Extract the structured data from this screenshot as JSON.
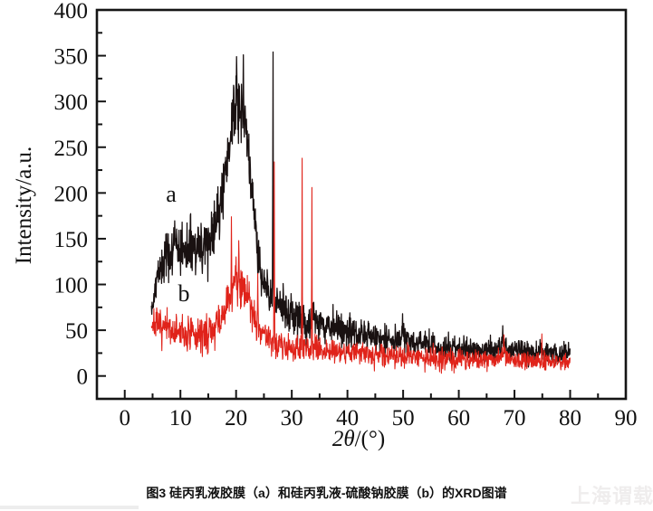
{
  "caption": "图3  硅丙乳液胶膜（a）和硅丙乳液-硫酸钠胶膜（b）的XRD图谱",
  "watermark": "上海谓载",
  "chart_data": {
    "type": "line",
    "title": "",
    "xlabel": "2θ/(°)",
    "xlabel_parts": {
      "italic": "2θ",
      "rest": "/(°)"
    },
    "ylabel": "Intensity/a.u.",
    "xlim": [
      -5,
      90
    ],
    "ylim": [
      -25,
      400
    ],
    "x_ticks": [
      0,
      10,
      20,
      30,
      40,
      50,
      60,
      70,
      80,
      90
    ],
    "x_minor_ticks": [
      5,
      15,
      25,
      35,
      45,
      55,
      65,
      75,
      85
    ],
    "y_ticks": [
      0,
      50,
      100,
      150,
      200,
      250,
      300,
      350,
      400
    ],
    "y_minor_ticks": [
      25,
      75,
      125,
      175,
      225,
      275,
      325,
      375
    ],
    "grid": false,
    "legend_position": "none (series labeled inline with letters)",
    "frame_color": "#151515",
    "tick_direction": "in",
    "series": [
      {
        "name": "a - 硅丙乳液胶膜 (silicone-acrylic emulsion film)",
        "label": "a",
        "color": "#191111",
        "width": 1.3,
        "seed": 42,
        "x_start": 4.8,
        "x_end": 80,
        "step": 0.055,
        "envelope": [
          [
            4.8,
            70
          ],
          [
            5.4,
            96
          ],
          [
            6.2,
            116
          ],
          [
            7,
            127
          ],
          [
            8,
            134
          ],
          [
            9,
            139
          ],
          [
            10,
            140
          ],
          [
            11,
            138
          ],
          [
            12,
            137
          ],
          [
            13,
            139
          ],
          [
            14,
            142
          ],
          [
            15,
            147
          ],
          [
            16,
            158
          ],
          [
            17,
            180
          ],
          [
            17.8,
            205
          ],
          [
            18.6,
            243
          ],
          [
            19.4,
            275
          ],
          [
            20,
            292
          ],
          [
            20.6,
            299
          ],
          [
            21.2,
            290
          ],
          [
            21.8,
            266
          ],
          [
            22.4,
            240
          ],
          [
            23,
            195
          ],
          [
            23.8,
            140
          ],
          [
            24.6,
            110
          ],
          [
            25.4,
            96
          ],
          [
            26.2,
            88
          ],
          [
            27,
            82
          ],
          [
            28,
            76
          ],
          [
            29,
            72
          ],
          [
            30,
            69
          ],
          [
            31,
            64
          ],
          [
            32,
            60
          ],
          [
            33,
            56
          ],
          [
            34,
            61
          ],
          [
            35,
            58
          ],
          [
            36,
            56
          ],
          [
            37,
            55
          ],
          [
            38,
            52
          ],
          [
            39,
            51
          ],
          [
            40,
            49
          ],
          [
            41,
            47
          ],
          [
            42,
            45
          ],
          [
            43,
            44
          ],
          [
            44,
            43
          ],
          [
            45,
            42
          ],
          [
            46,
            41
          ],
          [
            47,
            40
          ],
          [
            48,
            39
          ],
          [
            49,
            39
          ],
          [
            50,
            42
          ],
          [
            51,
            38
          ],
          [
            52,
            36
          ],
          [
            53,
            35
          ],
          [
            54,
            34
          ],
          [
            55,
            34
          ],
          [
            56,
            32
          ],
          [
            57,
            31
          ],
          [
            58,
            31
          ],
          [
            59,
            30
          ],
          [
            60,
            29
          ],
          [
            61,
            29
          ],
          [
            62,
            28
          ],
          [
            63,
            28
          ],
          [
            64,
            27
          ],
          [
            65,
            27
          ],
          [
            66,
            27
          ],
          [
            67,
            29
          ],
          [
            67.8,
            35
          ],
          [
            68.6,
            31
          ],
          [
            69,
            28
          ],
          [
            70,
            27
          ],
          [
            71,
            26
          ],
          [
            72,
            26
          ],
          [
            73,
            26
          ],
          [
            74,
            25
          ],
          [
            75,
            25
          ],
          [
            76,
            25
          ],
          [
            77,
            24
          ],
          [
            78,
            24
          ],
          [
            79,
            24
          ],
          [
            80,
            24
          ]
        ],
        "noise": [
          [
            4.8,
            7
          ],
          [
            7,
            12
          ],
          [
            10,
            15
          ],
          [
            14,
            15
          ],
          [
            17,
            16
          ],
          [
            19,
            17
          ],
          [
            21,
            17
          ],
          [
            23,
            15
          ],
          [
            25,
            12
          ],
          [
            27,
            10
          ],
          [
            30,
            10
          ],
          [
            33,
            10
          ],
          [
            36,
            10
          ],
          [
            40,
            9
          ],
          [
            45,
            8
          ],
          [
            50,
            8
          ],
          [
            55,
            7
          ],
          [
            60,
            7
          ],
          [
            65,
            6
          ],
          [
            70,
            6
          ],
          [
            75,
            6
          ],
          [
            80,
            6
          ]
        ],
        "spikes": [
          [
            20.08,
            349
          ],
          [
            21.32,
            351
          ],
          [
            26.62,
            354
          ],
          [
            49.9,
            68
          ],
          [
            67.9,
            55
          ]
        ],
        "key_features": "broad amorphous hump centered ~2θ=20.5° (max ~300, noise to ~350); sharp crystalline spike at 26.6° (354); decaying noisy tail 60→24 from 35° to 80°"
      },
      {
        "name": "b - 硅丙乳液-硫酸钠胶膜 (silicone-acrylic emulsion / sodium sulfate film)",
        "label": "b",
        "color": "#e0231a",
        "width": 1.1,
        "seed": 7,
        "x_start": 4.8,
        "x_end": 80,
        "step": 0.055,
        "envelope": [
          [
            4.8,
            58
          ],
          [
            6,
            54
          ],
          [
            7,
            52
          ],
          [
            8,
            50
          ],
          [
            9,
            48
          ],
          [
            10,
            47
          ],
          [
            11,
            45
          ],
          [
            12,
            44
          ],
          [
            13,
            44
          ],
          [
            14,
            45
          ],
          [
            15,
            47
          ],
          [
            16,
            51
          ],
          [
            17,
            58
          ],
          [
            18,
            70
          ],
          [
            18.8,
            84
          ],
          [
            19.6,
            100
          ],
          [
            20.2,
            109
          ],
          [
            20.8,
            105
          ],
          [
            21.5,
            96
          ],
          [
            22.2,
            86
          ],
          [
            23,
            70
          ],
          [
            23.8,
            56
          ],
          [
            24.6,
            48
          ],
          [
            25.4,
            44
          ],
          [
            26.2,
            40
          ],
          [
            27,
            37
          ],
          [
            28,
            34
          ],
          [
            29,
            33
          ],
          [
            30,
            32
          ],
          [
            31,
            31
          ],
          [
            32,
            30
          ],
          [
            33,
            29
          ],
          [
            34,
            29
          ],
          [
            35,
            30
          ],
          [
            36,
            29
          ],
          [
            37,
            28
          ],
          [
            38,
            27
          ],
          [
            39,
            27
          ],
          [
            40,
            26
          ],
          [
            41,
            26
          ],
          [
            42,
            25
          ],
          [
            43,
            25
          ],
          [
            44,
            24
          ],
          [
            45,
            24
          ],
          [
            46,
            23
          ],
          [
            47,
            23
          ],
          [
            48,
            22
          ],
          [
            49,
            22
          ],
          [
            50,
            22
          ],
          [
            51,
            21
          ],
          [
            52,
            21
          ],
          [
            53,
            20
          ],
          [
            54,
            20
          ],
          [
            55,
            20
          ],
          [
            56,
            20
          ],
          [
            57,
            19
          ],
          [
            58,
            19
          ],
          [
            59,
            19
          ],
          [
            60,
            19
          ],
          [
            61,
            18
          ],
          [
            62,
            18
          ],
          [
            63,
            18
          ],
          [
            64,
            18
          ],
          [
            65,
            18
          ],
          [
            66,
            18
          ],
          [
            67,
            20
          ],
          [
            67.8,
            26
          ],
          [
            68.6,
            22
          ],
          [
            69,
            19
          ],
          [
            70,
            18
          ],
          [
            71,
            17
          ],
          [
            72,
            17
          ],
          [
            73,
            16
          ],
          [
            74,
            16
          ],
          [
            75,
            16
          ],
          [
            76,
            16
          ],
          [
            77,
            15
          ],
          [
            78,
            15
          ],
          [
            79,
            15
          ],
          [
            80,
            15
          ]
        ],
        "noise": [
          [
            4.8,
            8
          ],
          [
            7,
            9
          ],
          [
            10,
            10
          ],
          [
            14,
            10
          ],
          [
            17,
            11
          ],
          [
            19,
            13
          ],
          [
            21,
            13
          ],
          [
            23,
            11
          ],
          [
            25,
            9
          ],
          [
            27,
            8
          ],
          [
            30,
            8
          ],
          [
            33,
            7
          ],
          [
            36,
            7
          ],
          [
            40,
            7
          ],
          [
            45,
            6
          ],
          [
            50,
            6
          ],
          [
            55,
            6
          ],
          [
            60,
            6
          ],
          [
            65,
            5
          ],
          [
            70,
            5
          ],
          [
            75,
            5
          ],
          [
            80,
            5
          ]
        ],
        "spikes": [
          [
            19.15,
            174
          ],
          [
            20.5,
            148
          ],
          [
            23.9,
            112
          ],
          [
            26.85,
            234
          ],
          [
            31.85,
            238
          ],
          [
            33.6,
            206
          ],
          [
            68.1,
            45
          ],
          [
            74.9,
            46
          ]
        ],
        "key_features": "low noisy baseline ~45-55 below curve a; smaller hump ~2θ=20° (max ~110, spikes to ~174); sharp crystalline spikes at 26.85° (234), 31.85° (238), 33.6° (206); tail 30→15 from 35° to 80°"
      }
    ]
  }
}
